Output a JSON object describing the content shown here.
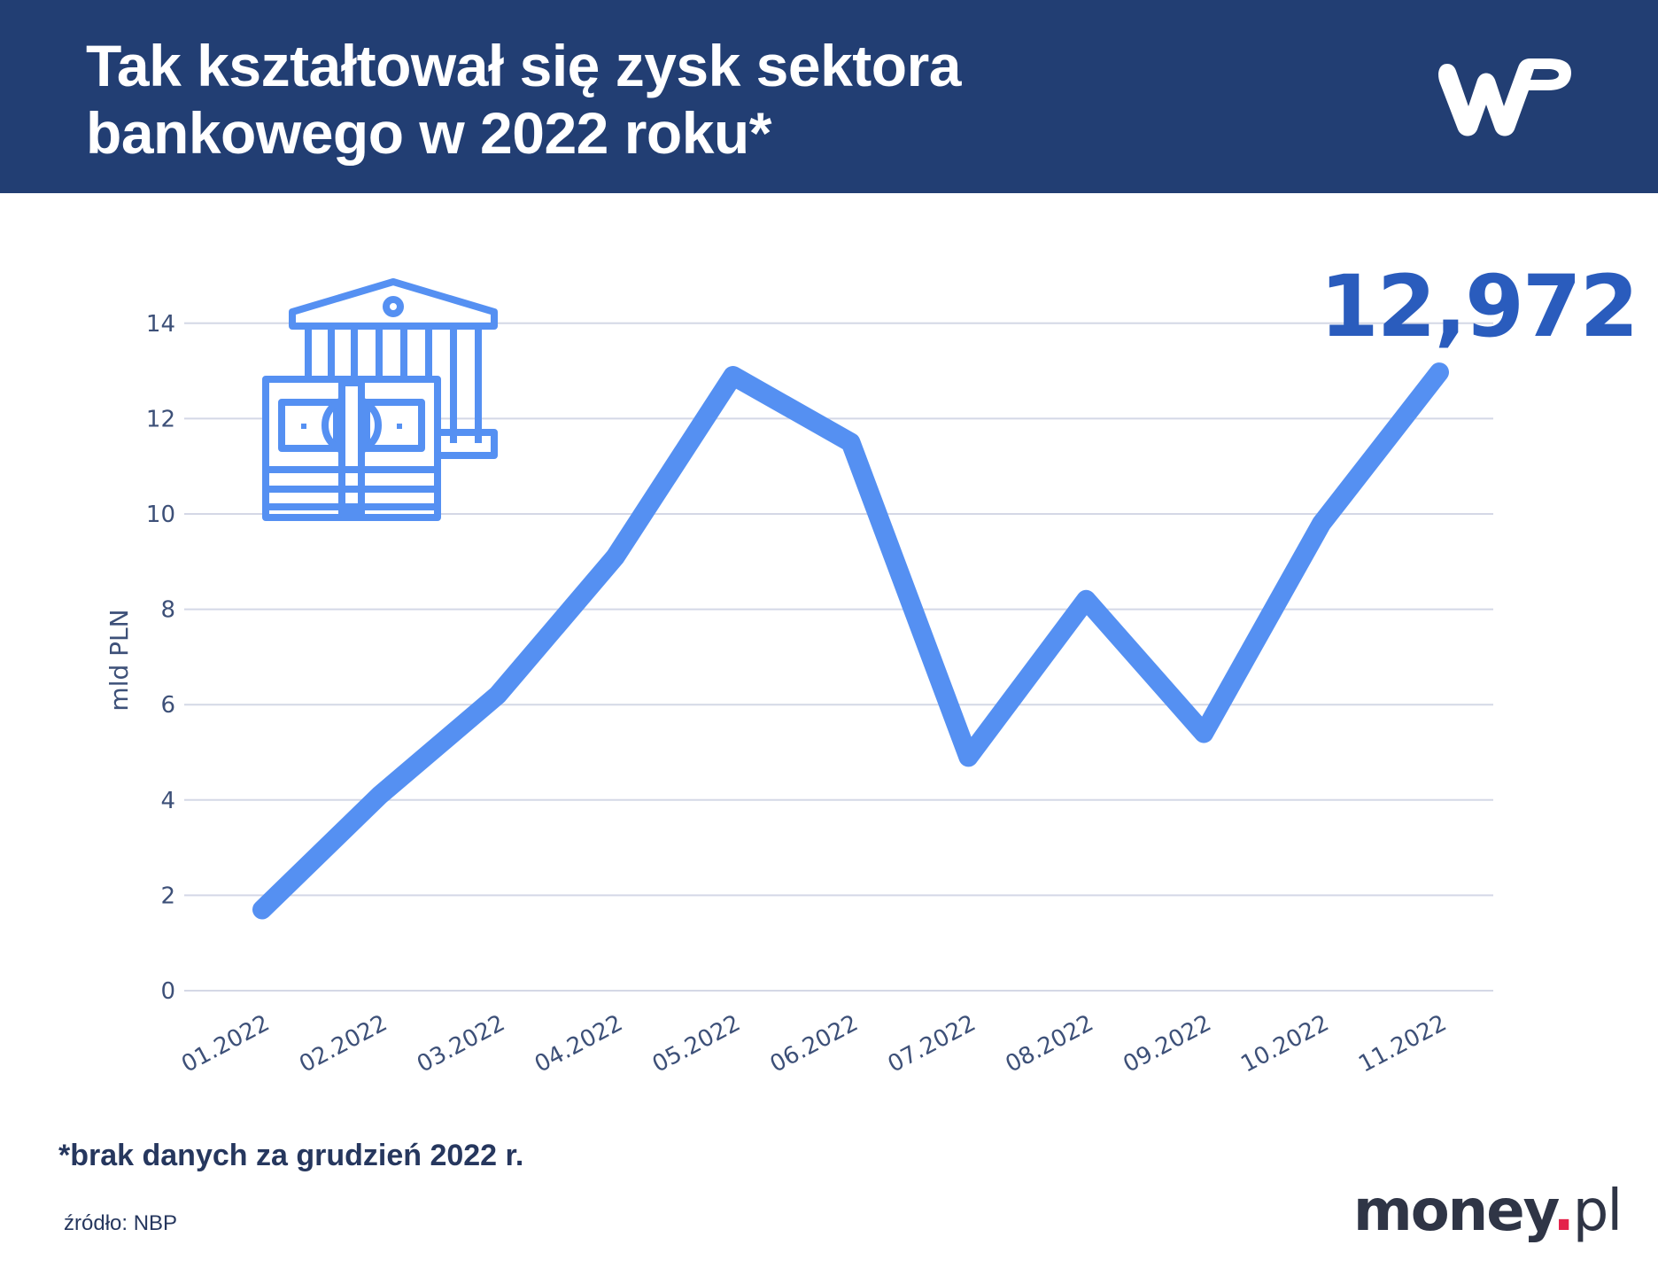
{
  "header": {
    "title_line1": "Tak kształtował się zysk sektora",
    "title_line2": "bankowego w 2022 roku*",
    "logo": "wp-logo",
    "background": "#223e73"
  },
  "highlight": {
    "value_label": "12,972",
    "color": "#2a5cbd"
  },
  "icon": {
    "name": "bank-with-money-icon",
    "color": "#5590f2"
  },
  "footer": {
    "footnote": "*brak danych za grudzień 2022 r.",
    "source": "źródło: NBP",
    "brand_main": "money",
    "brand_dot": ".",
    "brand_suffix": "pl"
  },
  "chart_data": {
    "type": "line",
    "title": "Tak kształtował się zysk sektora bankowego w 2022 roku*",
    "xlabel": "",
    "ylabel": "mld PLN",
    "ylim": [
      0,
      14
    ],
    "yticks": [
      "0",
      "2",
      "4",
      "6",
      "8",
      "10",
      "12",
      "14"
    ],
    "grid": true,
    "legend": "none",
    "line_color": "#5590f2",
    "categories": [
      "01.2022",
      "02.2022",
      "03.2022",
      "04.2022",
      "05.2022",
      "06.2022",
      "07.2022",
      "08.2022",
      "09.2022",
      "10.2022",
      "11.2022"
    ],
    "series": [
      {
        "name": "Zysk sektora bankowego",
        "values": [
          1.7,
          4.1,
          6.2,
          9.1,
          12.9,
          11.5,
          4.9,
          8.2,
          5.4,
          9.8,
          12.972
        ]
      }
    ],
    "annotations": [
      {
        "text": "12,972",
        "x": "11.2022"
      }
    ]
  }
}
